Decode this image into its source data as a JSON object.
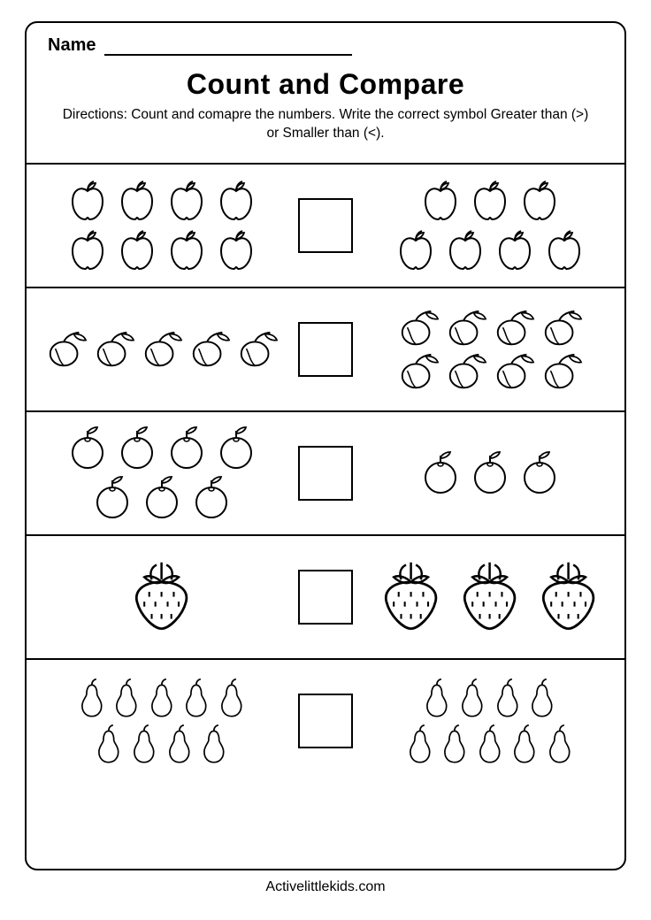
{
  "name_label": "Name",
  "title": "Count and Compare",
  "directions": "Directions: Count and comapre the numbers. Write the correct symbol Greater than (>) or Smaller than (<).",
  "footer": "Activelittlekids.com",
  "stroke_color": "#000000",
  "fill_color": "#ffffff",
  "border_color": "#000000",
  "page_bg": "#ffffff",
  "icon_size": 50,
  "rows": [
    {
      "icon": "apple",
      "left_rows": [
        4,
        4
      ],
      "right_rows": [
        3,
        4
      ]
    },
    {
      "icon": "plum",
      "left_rows": [
        5
      ],
      "right_rows": [
        4,
        4
      ]
    },
    {
      "icon": "orange",
      "left_rows": [
        4,
        3
      ],
      "right_rows": [
        3
      ]
    },
    {
      "icon": "strawberry",
      "left_rows": [
        1
      ],
      "right_rows": [
        3
      ]
    },
    {
      "icon": "pear",
      "left_rows": [
        5,
        4
      ],
      "right_rows": [
        4,
        5
      ]
    }
  ]
}
